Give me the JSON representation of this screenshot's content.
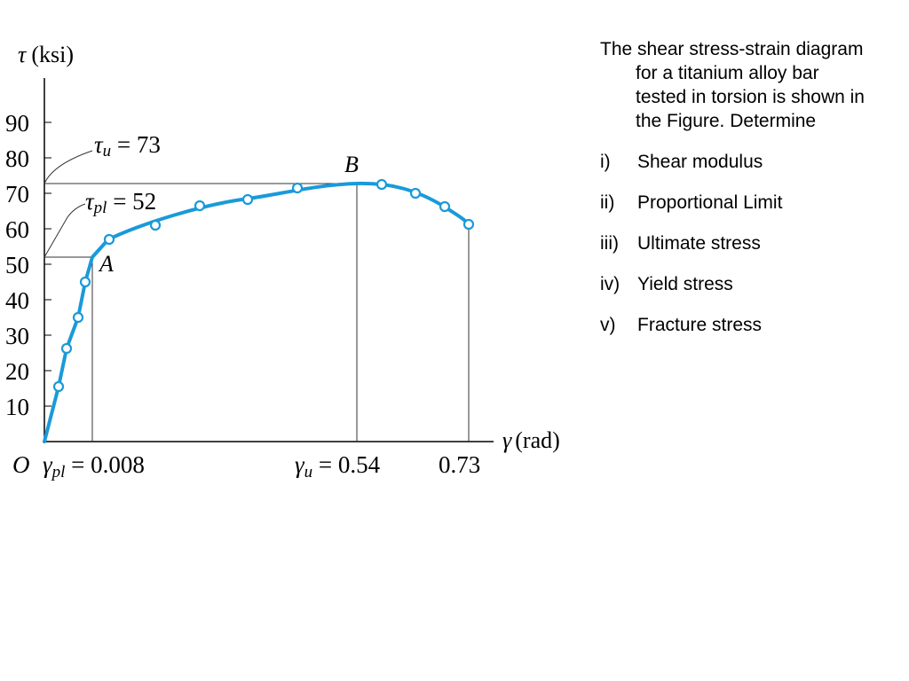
{
  "figure": {
    "y_label_symbol": "τ",
    "y_label_unit": "(ksi)",
    "x_label_symbol": "γ",
    "x_label_unit": "(rad)",
    "origin": "O",
    "y_ticks": [
      "90",
      "80",
      "70",
      "60",
      "50",
      "40",
      "30",
      "20",
      "10"
    ],
    "point_a": "A",
    "point_b": "B",
    "tau_u": {
      "symbol": "τ",
      "sub": "u",
      "rest": " = 73"
    },
    "tau_pl": {
      "symbol": "τ",
      "sub": "pl",
      "rest": " = 52"
    },
    "gamma_pl": {
      "symbol": "γ",
      "sub": "pl",
      "rest": " = 0.008"
    },
    "gamma_u": {
      "symbol": "γ",
      "sub": "u",
      "rest": " = 0.54"
    },
    "gamma_f": "0.73",
    "curve_color": "#1a9ad9"
  },
  "chart_data": {
    "type": "line",
    "x_axis": {
      "label": "γ (rad)"
    },
    "y_axis": {
      "label": "τ (ksi)",
      "ticks": [
        10,
        20,
        30,
        40,
        50,
        60,
        70,
        80,
        90
      ]
    },
    "annotations": [
      {
        "label": "A",
        "x": 0.008,
        "y": 52
      },
      {
        "label": "B",
        "x": 0.54,
        "y": 73
      }
    ]
  },
  "problem": {
    "intro": "The shear stress-strain diagram for a titanium alloy bar tested in torsion  is shown in the Figure. Determine",
    "items": [
      {
        "num": "i)",
        "text": "Shear modulus"
      },
      {
        "num": "ii)",
        "text": "Proportional Limit"
      },
      {
        "num": "iii)",
        "text": "Ultimate stress"
      },
      {
        "num": "iv)",
        "text": "Yield stress"
      },
      {
        "num": "v)",
        "text": "Fracture stress"
      }
    ]
  }
}
